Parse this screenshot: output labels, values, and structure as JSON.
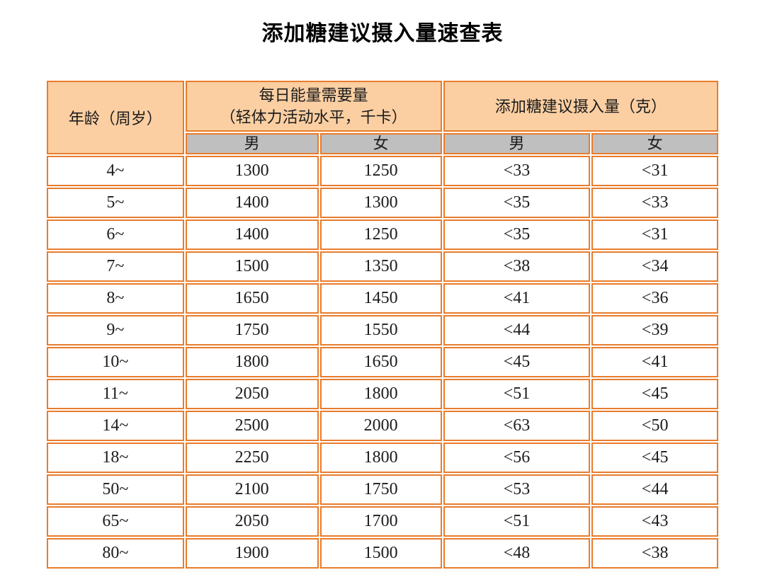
{
  "colors": {
    "border_orange": "#e87c2c",
    "header_peach": "#fbcfa2",
    "subheader_gray": "#bfbfbf",
    "text": "#1c1c1c",
    "page_background": "#ffffff"
  },
  "chart_data": {
    "type": "table",
    "title": "添加糖建议摄入量速查表",
    "header": {
      "age": "年龄（周岁）",
      "energy_group_line1": "每日能量需要量",
      "energy_group_line2": "（轻体力活动水平，千卡）",
      "sugar_group": "添加糖建议摄入量（克）",
      "male": "男",
      "female": "女"
    },
    "columns": [
      "年龄（周岁）",
      "每日能量需要量-男",
      "每日能量需要量-女",
      "添加糖建议摄入量-男",
      "添加糖建议摄入量-女"
    ],
    "rows": [
      {
        "age": "4~",
        "energy_male": "1300",
        "energy_female": "1250",
        "sugar_male": "<33",
        "sugar_female": "<31"
      },
      {
        "age": "5~",
        "energy_male": "1400",
        "energy_female": "1300",
        "sugar_male": "<35",
        "sugar_female": "<33"
      },
      {
        "age": "6~",
        "energy_male": "1400",
        "energy_female": "1250",
        "sugar_male": "<35",
        "sugar_female": "<31"
      },
      {
        "age": "7~",
        "energy_male": "1500",
        "energy_female": "1350",
        "sugar_male": "<38",
        "sugar_female": "<34"
      },
      {
        "age": "8~",
        "energy_male": "1650",
        "energy_female": "1450",
        "sugar_male": "<41",
        "sugar_female": "<36"
      },
      {
        "age": "9~",
        "energy_male": "1750",
        "energy_female": "1550",
        "sugar_male": "<44",
        "sugar_female": "<39"
      },
      {
        "age": "10~",
        "energy_male": "1800",
        "energy_female": "1650",
        "sugar_male": "<45",
        "sugar_female": "<41"
      },
      {
        "age": "11~",
        "energy_male": "2050",
        "energy_female": "1800",
        "sugar_male": "<51",
        "sugar_female": "<45"
      },
      {
        "age": "14~",
        "energy_male": "2500",
        "energy_female": "2000",
        "sugar_male": "<63",
        "sugar_female": "<50"
      },
      {
        "age": "18~",
        "energy_male": "2250",
        "energy_female": "1800",
        "sugar_male": "<56",
        "sugar_female": "<45"
      },
      {
        "age": "50~",
        "energy_male": "2100",
        "energy_female": "1750",
        "sugar_male": "<53",
        "sugar_female": "<44"
      },
      {
        "age": "65~",
        "energy_male": "2050",
        "energy_female": "1700",
        "sugar_male": "<51",
        "sugar_female": "<43"
      },
      {
        "age": "80~",
        "energy_male": "1900",
        "energy_female": "1500",
        "sugar_male": "<48",
        "sugar_female": "<38"
      }
    ]
  }
}
